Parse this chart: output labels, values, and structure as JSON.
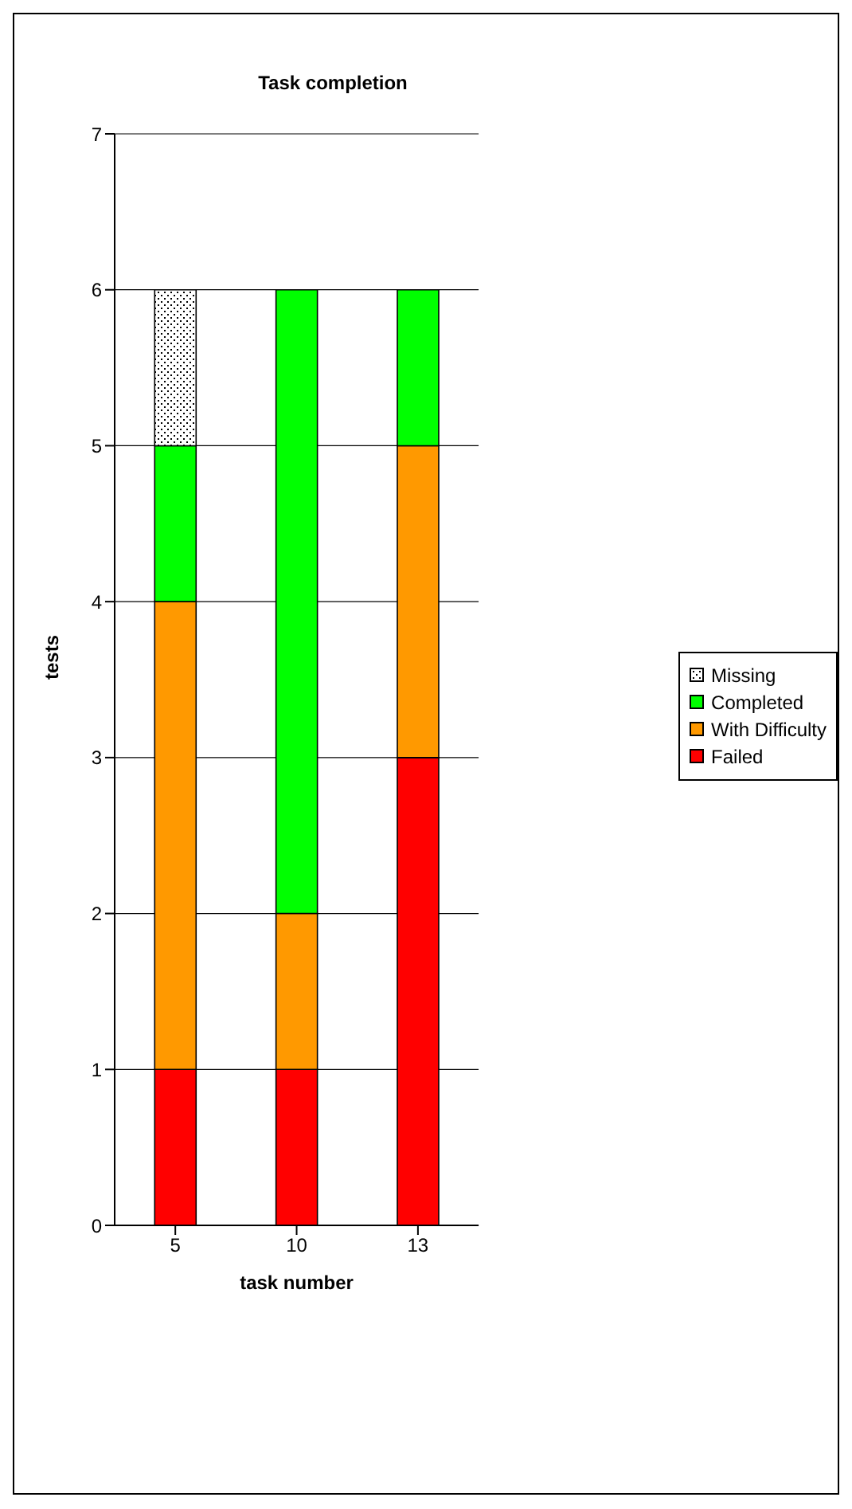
{
  "chart_data": {
    "type": "bar",
    "title": "Task completion",
    "xlabel": "task number",
    "ylabel": "tests",
    "categories": [
      "5",
      "10",
      "13"
    ],
    "stacked": true,
    "ylim": [
      0,
      7
    ],
    "yticks": [
      0,
      1,
      2,
      3,
      4,
      5,
      6,
      7
    ],
    "grid": "y",
    "legend": "right",
    "series": [
      {
        "name": "Failed",
        "color": "#ff0000",
        "values": [
          1,
          1,
          3
        ]
      },
      {
        "name": "With Difficulty",
        "color": "#ff9900",
        "values": [
          3,
          1,
          2
        ]
      },
      {
        "name": "Completed",
        "color": "#00ff00",
        "values": [
          1,
          4,
          1
        ]
      },
      {
        "name": "Missing",
        "color": "#000000",
        "values": [
          1,
          0,
          0
        ]
      }
    ]
  }
}
